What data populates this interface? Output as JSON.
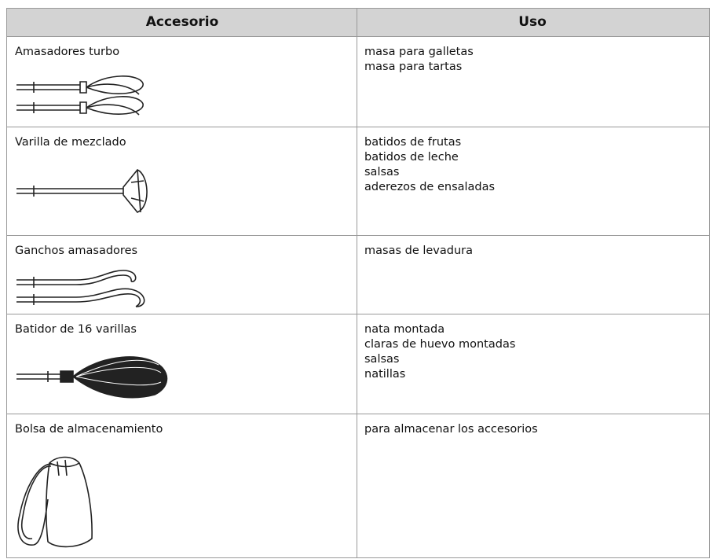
{
  "table": {
    "header": [
      "Accesorio",
      "Uso"
    ],
    "rows": [
      {
        "accessory": "Amasadores turbo",
        "uses": [
          "masa para galletas",
          "masa para tartas"
        ]
      },
      {
        "accessory": "Varilla de mezclado",
        "uses": [
          "batidos de frutas",
          "batidos de leche",
          "salsas",
          "aderezos de ensaladas"
        ]
      },
      {
        "accessory": "Ganchos amasadores",
        "uses": [
          "masas de levadura"
        ]
      },
      {
        "accessory": "Batidor de 16 varillas",
        "uses": [
          "nata montada",
          "claras de huevo montadas",
          "salsas",
          "natillas"
        ]
      },
      {
        "accessory": "Bolsa de almacenamiento",
        "uses": [
          "para almacenar los accesorios"
        ]
      }
    ]
  }
}
